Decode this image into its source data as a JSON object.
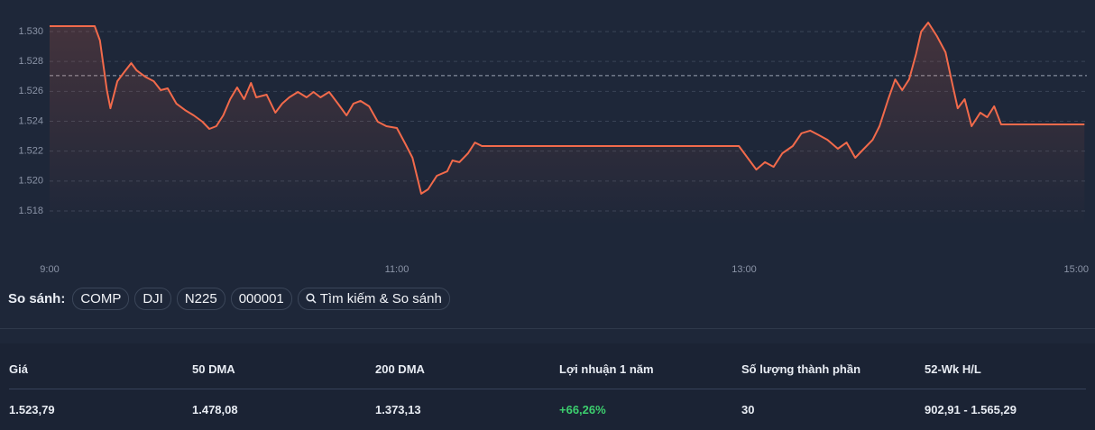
{
  "chart_data": {
    "type": "line",
    "x": [
      9.0,
      9.26,
      9.29,
      9.33,
      9.35,
      9.39,
      9.43,
      9.47,
      9.5,
      9.55,
      9.6,
      9.64,
      9.68,
      9.73,
      9.78,
      9.83,
      9.88,
      9.92,
      9.96,
      10.0,
      10.04,
      10.08,
      10.12,
      10.16,
      10.19,
      10.25,
      10.3,
      10.34,
      10.38,
      10.43,
      10.48,
      10.52,
      10.56,
      10.61,
      10.66,
      10.71,
      10.75,
      10.79,
      10.84,
      10.89,
      10.94,
      11.0,
      11.05,
      11.09,
      11.14,
      11.18,
      11.23,
      11.29,
      11.32,
      11.36,
      11.41,
      11.45,
      11.49,
      12.97,
      13.02,
      13.07,
      13.12,
      13.17,
      13.22,
      13.28,
      13.33,
      13.38,
      13.43,
      13.48,
      13.54,
      13.59,
      13.64,
      13.69,
      13.74,
      13.78,
      13.83,
      13.87,
      13.91,
      13.95,
      13.99,
      14.02,
      14.06,
      14.11,
      14.16,
      14.19,
      14.23,
      14.27,
      14.31,
      14.36,
      14.4,
      14.44,
      14.48,
      14.96
    ],
    "values": [
      1530.36,
      1530.36,
      1529.4,
      1526.08,
      1524.87,
      1526.68,
      1527.29,
      1527.89,
      1527.41,
      1526.98,
      1526.68,
      1526.08,
      1526.2,
      1525.18,
      1524.75,
      1524.39,
      1523.97,
      1523.49,
      1523.67,
      1524.39,
      1525.48,
      1526.26,
      1525.48,
      1526.56,
      1525.6,
      1525.78,
      1524.57,
      1525.18,
      1525.6,
      1525.96,
      1525.6,
      1525.96,
      1525.6,
      1525.96,
      1525.18,
      1524.39,
      1525.18,
      1525.36,
      1525.0,
      1523.97,
      1523.67,
      1523.55,
      1522.46,
      1521.56,
      1519.15,
      1519.45,
      1520.35,
      1520.65,
      1521.38,
      1521.26,
      1521.86,
      1522.58,
      1522.34,
      1522.34,
      1521.56,
      1520.77,
      1521.26,
      1520.95,
      1521.86,
      1522.34,
      1523.19,
      1523.37,
      1523.07,
      1522.76,
      1522.16,
      1522.58,
      1521.56,
      1522.16,
      1522.76,
      1523.67,
      1525.48,
      1526.8,
      1526.08,
      1526.8,
      1528.49,
      1530.0,
      1530.6,
      1529.7,
      1528.61,
      1526.98,
      1524.87,
      1525.48,
      1523.67,
      1524.57,
      1524.27,
      1525.0,
      1523.79,
      1523.79
    ],
    "color": "#f26a4b",
    "xlim": [
      9,
      15
    ],
    "xticks": [
      {
        "value": 9,
        "label": "9:00"
      },
      {
        "value": 11,
        "label": "11:00"
      },
      {
        "value": 13,
        "label": "13:00"
      },
      {
        "value": 15,
        "label": "15:00"
      }
    ],
    "ylim": [
      1517,
      1531
    ],
    "yticks": [
      {
        "value": 1518,
        "label": "1.518"
      },
      {
        "value": 1520,
        "label": "1.520"
      },
      {
        "value": 1522,
        "label": "1.522"
      },
      {
        "value": 1524,
        "label": "1.524"
      },
      {
        "value": 1526,
        "label": "1.526"
      },
      {
        "value": 1528,
        "label": "1.528"
      },
      {
        "value": 1530,
        "label": "1.530"
      }
    ],
    "grid": true,
    "reference_line": 1527.05
  },
  "compare": {
    "label": "So sánh:",
    "items": [
      "COMP",
      "DJI",
      "N225",
      "000001"
    ],
    "search": "Tìm kiếm & So sánh"
  },
  "stats": {
    "headers": [
      "Giá",
      "50 DMA",
      "200 DMA",
      "Lợi nhuận 1 năm",
      "Số lượng thành phần",
      "52-Wk H/L"
    ],
    "values": [
      "1.523,79",
      "1.478,08",
      "1.373,13",
      "+66,26%",
      "30",
      "902,91 - 1.565,29"
    ]
  }
}
